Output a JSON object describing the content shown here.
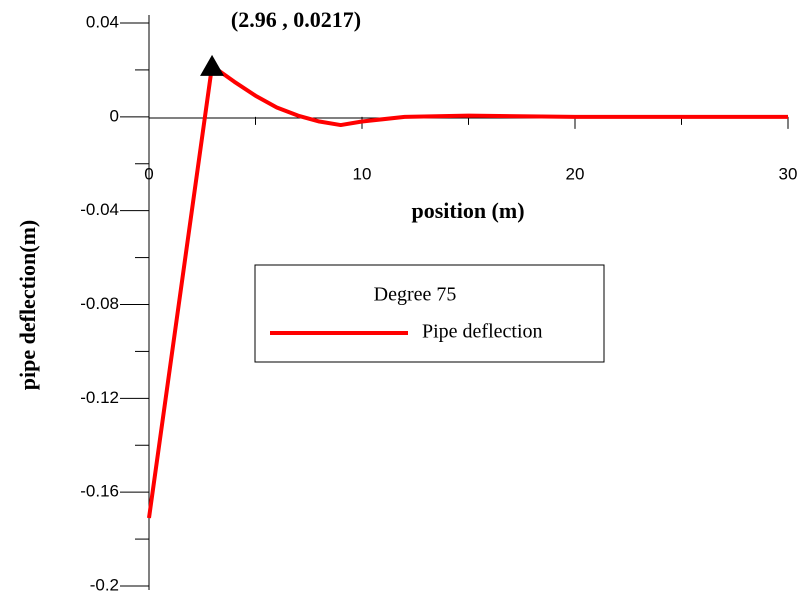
{
  "chart_data": {
    "type": "line",
    "xlabel": "position (m)",
    "ylabel": "pipe deflection(m)",
    "legend_title": "Degree 75",
    "x": [
      0,
      2.96,
      4,
      5,
      6,
      7,
      8,
      9,
      10,
      12,
      15,
      20,
      30
    ],
    "series": [
      {
        "name": "Pipe deflection",
        "color": "#ff0000",
        "values": [
          -0.171,
          0.0217,
          0.015,
          0.009,
          0.004,
          0.0005,
          -0.002,
          -0.0035,
          -0.002,
          0,
          0.0005,
          0,
          0
        ]
      }
    ],
    "annotation": {
      "text": "(2.96 , 0.0217)",
      "x": 2.96,
      "y": 0.0217
    },
    "xlim": [
      0,
      30
    ],
    "ylim": [
      -0.2,
      0.04
    ],
    "xticks": [
      0,
      10,
      20,
      30
    ],
    "xminorticks": [
      5,
      15,
      25
    ],
    "yticks": [
      0.04,
      0,
      -0.04,
      -0.08,
      -0.12,
      -0.16,
      -0.2
    ],
    "yminorticks": [
      0.02,
      -0.02,
      -0.06,
      -0.1,
      -0.14,
      -0.18
    ]
  }
}
